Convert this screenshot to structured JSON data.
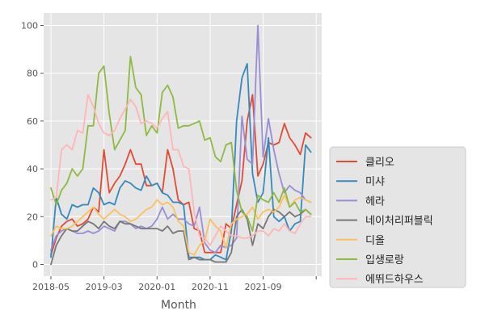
{
  "chart_data": {
    "type": "line",
    "xlabel": "Month",
    "ylabel": "",
    "ylim": [
      -2,
      104
    ],
    "x_tick_labels": [
      "2018-05",
      "2019-03",
      "2020-01",
      "2020-11",
      "2021-09"
    ],
    "y_tick_labels": [
      "0",
      "20",
      "40",
      "60",
      "80",
      "100"
    ],
    "grid": true,
    "legend_position": "right",
    "x": [
      "2018-05",
      "2018-06",
      "2018-07",
      "2018-08",
      "2018-09",
      "2018-10",
      "2018-11",
      "2018-12",
      "2019-01",
      "2019-02",
      "2019-03",
      "2019-04",
      "2019-05",
      "2019-06",
      "2019-07",
      "2019-08",
      "2019-09",
      "2019-10",
      "2019-11",
      "2019-12",
      "2020-01",
      "2020-02",
      "2020-03",
      "2020-04",
      "2020-05",
      "2020-06",
      "2020-07",
      "2020-08",
      "2020-09",
      "2020-10",
      "2020-11",
      "2020-12",
      "2021-01",
      "2021-02",
      "2021-03",
      "2021-04",
      "2021-05",
      "2021-06",
      "2021-07",
      "2021-08",
      "2021-09",
      "2021-10",
      "2021-11",
      "2021-12",
      "2022-01",
      "2022-02",
      "2022-03",
      "2022-04",
      "2022-05",
      "2022-06"
    ],
    "series": [
      {
        "name": "클리오",
        "color": "#E24A33",
        "values": [
          4,
          11,
          16,
          18,
          19,
          16,
          17,
          19,
          24,
          22,
          48,
          30,
          34,
          37,
          42,
          48,
          42,
          42,
          33,
          33,
          34,
          30,
          48,
          40,
          27,
          25,
          26,
          15,
          14,
          5,
          5,
          5,
          5,
          17,
          15,
          25,
          35,
          60,
          71,
          37,
          42,
          51,
          50,
          51,
          59,
          53,
          50,
          46,
          55,
          53
        ]
      },
      {
        "name": "미샤",
        "color": "#348ABD",
        "values": [
          3,
          28,
          21,
          19,
          25,
          24,
          25,
          25,
          32,
          30,
          25,
          26,
          25,
          32,
          35,
          34,
          32,
          31,
          37,
          33,
          34,
          30,
          29,
          26,
          26,
          25,
          3,
          3,
          3,
          2,
          2,
          4,
          3,
          2,
          14,
          60,
          78,
          84,
          38,
          26,
          30,
          53,
          20,
          18,
          20,
          14,
          17,
          18,
          50,
          47
        ]
      },
      {
        "name": "헤라",
        "color": "#988ED5",
        "values": [
          6,
          12,
          14,
          15,
          14,
          13,
          13,
          14,
          13,
          14,
          16,
          15,
          14,
          18,
          18,
          17,
          15,
          16,
          15,
          16,
          19,
          24,
          19,
          21,
          19,
          19,
          17,
          16,
          24,
          9,
          6,
          5,
          8,
          7,
          8,
          11,
          62,
          44,
          42,
          100,
          45,
          61,
          48,
          38,
          30,
          33,
          31,
          30,
          27,
          26
        ]
      },
      {
        "name": "네이처리퍼블릭",
        "color": "#777777",
        "values": [
          0,
          8,
          12,
          15,
          14,
          14,
          16,
          18,
          17,
          15,
          18,
          16,
          15,
          18,
          17,
          17,
          16,
          15,
          15,
          15,
          15,
          14,
          16,
          13,
          14,
          14,
          2,
          3,
          2,
          2,
          2,
          1,
          1,
          1,
          5,
          20,
          23,
          19,
          8,
          17,
          15,
          20,
          23,
          22,
          20,
          22,
          20,
          21,
          23,
          21
        ]
      },
      {
        "name": "디올",
        "color": "#FBC15E",
        "values": [
          12,
          16,
          15,
          15,
          16,
          18,
          20,
          22,
          24,
          21,
          19,
          21,
          23,
          21,
          20,
          18,
          19,
          21,
          23,
          24,
          27,
          25,
          26,
          24,
          18,
          16,
          5,
          4,
          8,
          10,
          19,
          16,
          14,
          7,
          17,
          19,
          20,
          21,
          24,
          19,
          22,
          23,
          22,
          24,
          29,
          24,
          27,
          28,
          27,
          26
        ]
      },
      {
        "name": "입생로랑",
        "color": "#8EBA42",
        "values": [
          32,
          25,
          31,
          34,
          40,
          37,
          40,
          58,
          58,
          80,
          83,
          63,
          48,
          52,
          56,
          87,
          74,
          71,
          54,
          58,
          55,
          72,
          75,
          70,
          57,
          58,
          58,
          59,
          60,
          52,
          53,
          45,
          43,
          50,
          51,
          31,
          22,
          20,
          14,
          29,
          27,
          26,
          30,
          26,
          32,
          24,
          26,
          22,
          23,
          21
        ]
      },
      {
        "name": "에뛰드하우스",
        "color": "#FFB5B8",
        "values": [
          27,
          28,
          48,
          50,
          48,
          56,
          55,
          71,
          66,
          59,
          55,
          54,
          56,
          61,
          65,
          69,
          66,
          59,
          60,
          59,
          57,
          61,
          64,
          48,
          48,
          41,
          40,
          22,
          12,
          11,
          8,
          12,
          16,
          14,
          12,
          12,
          11,
          11,
          12,
          14,
          14,
          12,
          15,
          14,
          17,
          14,
          13,
          17,
          20,
          20
        ]
      }
    ]
  }
}
